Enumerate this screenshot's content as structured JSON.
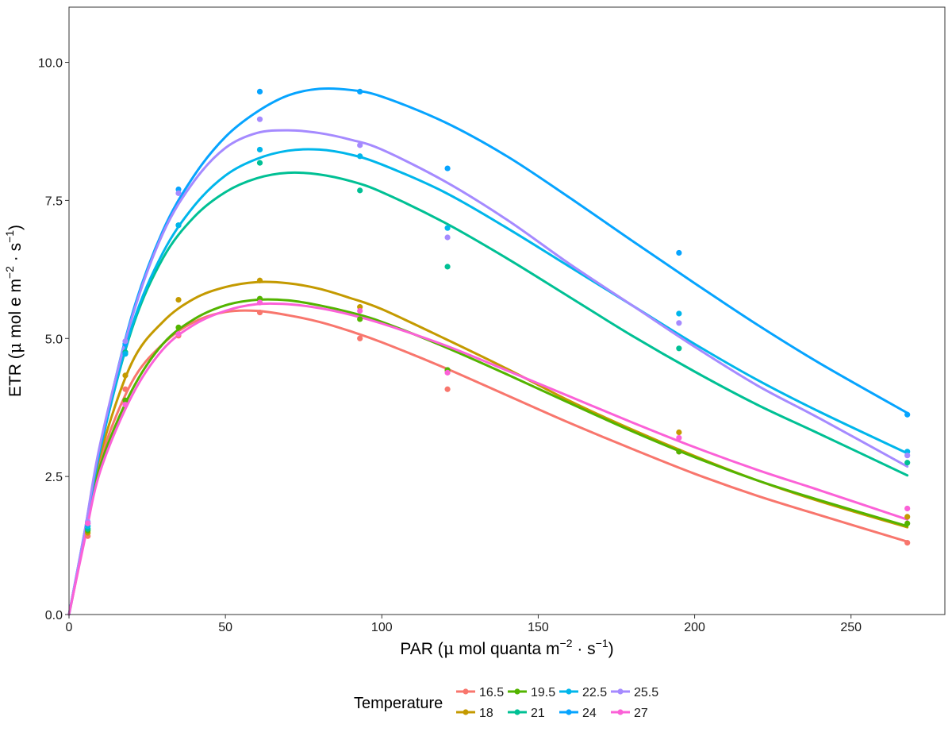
{
  "chart_data": {
    "type": "scatter",
    "title": "",
    "xlabel": "PAR (μ mol quanta m⁻²·s⁻¹)",
    "ylabel": "ETR (μ mol e m⁻²·s⁻¹)",
    "xlabel_parts": {
      "prefix": "PAR (",
      "mu": "μ",
      "mid": " mol quanta m",
      "sup1": "−2",
      "dot": " · s",
      "sup2": "−1",
      "suffix": ")"
    },
    "ylabel_parts": {
      "prefix": "ETR (",
      "mu": "μ",
      "mid": " mol e m",
      "sup1": "−2",
      "dot": " · s",
      "sup2": "−1",
      "suffix": ")"
    },
    "xlim": [
      0,
      280
    ],
    "ylim": [
      0,
      11
    ],
    "xticks": [
      0,
      50,
      100,
      150,
      200,
      250
    ],
    "xtick_labels": [
      "0",
      "50",
      "100",
      "150",
      "200",
      "250"
    ],
    "yticks": [
      0,
      2.5,
      5,
      7.5,
      10
    ],
    "ytick_labels": [
      "0.0",
      "2.5",
      "5.0",
      "7.5",
      "10.0"
    ],
    "grid": false,
    "legend_title": "Temperature",
    "legend_position": "bottom",
    "series": [
      {
        "name": "16.5",
        "color": "#F8766D",
        "points": [
          [
            6,
            1.42
          ],
          [
            18,
            4.08
          ],
          [
            35,
            5.05
          ],
          [
            61,
            5.47
          ],
          [
            93,
            5.0
          ],
          [
            121,
            4.08
          ],
          [
            195,
            2.95
          ],
          [
            268,
            1.3
          ]
        ],
        "curve": [
          [
            0,
            0
          ],
          [
            5,
            1.4
          ],
          [
            10,
            2.8
          ],
          [
            20,
            4.2
          ],
          [
            30,
            4.9
          ],
          [
            40,
            5.3
          ],
          [
            50,
            5.48
          ],
          [
            60,
            5.5
          ],
          [
            70,
            5.42
          ],
          [
            80,
            5.3
          ],
          [
            90,
            5.13
          ],
          [
            100,
            4.93
          ],
          [
            120,
            4.47
          ],
          [
            140,
            3.97
          ],
          [
            160,
            3.47
          ],
          [
            180,
            3.0
          ],
          [
            200,
            2.55
          ],
          [
            220,
            2.15
          ],
          [
            240,
            1.8
          ],
          [
            268,
            1.32
          ]
        ]
      },
      {
        "name": "18",
        "color": "#C49A00",
        "points": [
          [
            6,
            1.48
          ],
          [
            18,
            4.33
          ],
          [
            35,
            5.7
          ],
          [
            61,
            6.05
          ],
          [
            93,
            5.57
          ],
          [
            121,
            4.42
          ],
          [
            195,
            3.3
          ],
          [
            268,
            1.77
          ]
        ],
        "curve": [
          [
            0,
            0
          ],
          [
            5,
            1.45
          ],
          [
            10,
            2.9
          ],
          [
            20,
            4.55
          ],
          [
            30,
            5.3
          ],
          [
            40,
            5.72
          ],
          [
            50,
            5.93
          ],
          [
            60,
            6.02
          ],
          [
            70,
            6.0
          ],
          [
            80,
            5.9
          ],
          [
            90,
            5.73
          ],
          [
            100,
            5.53
          ],
          [
            120,
            5.0
          ],
          [
            140,
            4.45
          ],
          [
            160,
            3.87
          ],
          [
            180,
            3.35
          ],
          [
            200,
            2.87
          ],
          [
            220,
            2.43
          ],
          [
            240,
            2.05
          ],
          [
            268,
            1.58
          ]
        ]
      },
      {
        "name": "19.5",
        "color": "#53B400",
        "points": [
          [
            6,
            1.52
          ],
          [
            18,
            3.88
          ],
          [
            35,
            5.2
          ],
          [
            61,
            5.72
          ],
          [
            93,
            5.35
          ],
          [
            121,
            4.43
          ],
          [
            195,
            2.95
          ],
          [
            268,
            1.65
          ]
        ],
        "curve": [
          [
            0,
            0
          ],
          [
            5,
            1.4
          ],
          [
            10,
            2.7
          ],
          [
            20,
            4.05
          ],
          [
            30,
            4.9
          ],
          [
            40,
            5.35
          ],
          [
            50,
            5.6
          ],
          [
            60,
            5.7
          ],
          [
            70,
            5.69
          ],
          [
            80,
            5.6
          ],
          [
            90,
            5.47
          ],
          [
            100,
            5.3
          ],
          [
            120,
            4.85
          ],
          [
            140,
            4.35
          ],
          [
            160,
            3.83
          ],
          [
            180,
            3.32
          ],
          [
            200,
            2.85
          ],
          [
            220,
            2.43
          ],
          [
            240,
            2.07
          ],
          [
            268,
            1.6
          ]
        ]
      },
      {
        "name": "21",
        "color": "#00C094",
        "points": [
          [
            6,
            1.55
          ],
          [
            18,
            4.75
          ],
          [
            35,
            7.05
          ],
          [
            61,
            8.18
          ],
          [
            93,
            7.68
          ],
          [
            121,
            6.3
          ],
          [
            195,
            4.82
          ],
          [
            268,
            2.75
          ]
        ],
        "curve": [
          [
            0,
            0
          ],
          [
            5,
            1.45
          ],
          [
            10,
            3.0
          ],
          [
            20,
            5.15
          ],
          [
            30,
            6.45
          ],
          [
            40,
            7.2
          ],
          [
            50,
            7.65
          ],
          [
            60,
            7.9
          ],
          [
            70,
            8.0
          ],
          [
            80,
            7.97
          ],
          [
            90,
            7.85
          ],
          [
            100,
            7.65
          ],
          [
            120,
            7.1
          ],
          [
            140,
            6.45
          ],
          [
            160,
            5.75
          ],
          [
            180,
            5.05
          ],
          [
            200,
            4.4
          ],
          [
            220,
            3.8
          ],
          [
            240,
            3.27
          ],
          [
            268,
            2.52
          ]
        ]
      },
      {
        "name": "22.5",
        "color": "#00B6EB",
        "points": [
          [
            6,
            1.6
          ],
          [
            18,
            4.72
          ],
          [
            35,
            7.05
          ],
          [
            61,
            8.42
          ],
          [
            93,
            8.3
          ],
          [
            121,
            7.0
          ],
          [
            195,
            5.45
          ],
          [
            268,
            2.95
          ]
        ],
        "curve": [
          [
            0,
            0
          ],
          [
            5,
            1.45
          ],
          [
            10,
            3.0
          ],
          [
            20,
            5.2
          ],
          [
            30,
            6.55
          ],
          [
            40,
            7.4
          ],
          [
            50,
            7.95
          ],
          [
            60,
            8.25
          ],
          [
            70,
            8.4
          ],
          [
            80,
            8.42
          ],
          [
            90,
            8.33
          ],
          [
            100,
            8.15
          ],
          [
            120,
            7.65
          ],
          [
            140,
            7.0
          ],
          [
            160,
            6.3
          ],
          [
            180,
            5.6
          ],
          [
            200,
            4.9
          ],
          [
            220,
            4.25
          ],
          [
            240,
            3.67
          ],
          [
            268,
            2.92
          ]
        ]
      },
      {
        "name": "24",
        "color": "#06A4FF",
        "points": [
          [
            6,
            1.65
          ],
          [
            18,
            4.9
          ],
          [
            35,
            7.7
          ],
          [
            61,
            9.47
          ],
          [
            93,
            9.47
          ],
          [
            121,
            8.08
          ],
          [
            195,
            6.55
          ],
          [
            268,
            3.62
          ]
        ],
        "curve": [
          [
            0,
            0
          ],
          [
            5,
            1.5
          ],
          [
            10,
            3.05
          ],
          [
            20,
            5.4
          ],
          [
            30,
            6.95
          ],
          [
            40,
            7.95
          ],
          [
            50,
            8.65
          ],
          [
            60,
            9.1
          ],
          [
            70,
            9.4
          ],
          [
            80,
            9.52
          ],
          [
            90,
            9.5
          ],
          [
            100,
            9.38
          ],
          [
            120,
            8.92
          ],
          [
            140,
            8.3
          ],
          [
            160,
            7.55
          ],
          [
            180,
            6.77
          ],
          [
            200,
            6.0
          ],
          [
            220,
            5.25
          ],
          [
            240,
            4.55
          ],
          [
            268,
            3.65
          ]
        ]
      },
      {
        "name": "25.5",
        "color": "#A58AFF",
        "points": [
          [
            6,
            1.68
          ],
          [
            18,
            4.95
          ],
          [
            35,
            7.63
          ],
          [
            61,
            8.97
          ],
          [
            93,
            8.5
          ],
          [
            121,
            6.83
          ],
          [
            195,
            5.28
          ],
          [
            268,
            2.88
          ]
        ],
        "curve": [
          [
            0,
            0
          ],
          [
            5,
            1.5
          ],
          [
            10,
            3.1
          ],
          [
            20,
            5.35
          ],
          [
            30,
            6.9
          ],
          [
            40,
            7.85
          ],
          [
            50,
            8.45
          ],
          [
            60,
            8.72
          ],
          [
            70,
            8.77
          ],
          [
            80,
            8.72
          ],
          [
            90,
            8.6
          ],
          [
            100,
            8.42
          ],
          [
            120,
            7.85
          ],
          [
            140,
            7.15
          ],
          [
            160,
            6.35
          ],
          [
            180,
            5.6
          ],
          [
            200,
            4.85
          ],
          [
            220,
            4.15
          ],
          [
            240,
            3.55
          ],
          [
            268,
            2.68
          ]
        ]
      },
      {
        "name": "27",
        "color": "#FB61D7",
        "points": [
          [
            6,
            1.65
          ],
          [
            18,
            3.8
          ],
          [
            35,
            5.08
          ],
          [
            61,
            5.65
          ],
          [
            93,
            5.5
          ],
          [
            121,
            4.38
          ],
          [
            195,
            3.2
          ],
          [
            268,
            1.92
          ]
        ],
        "curve": [
          [
            0,
            0
          ],
          [
            5,
            1.35
          ],
          [
            10,
            2.6
          ],
          [
            20,
            3.95
          ],
          [
            30,
            4.8
          ],
          [
            40,
            5.25
          ],
          [
            50,
            5.5
          ],
          [
            60,
            5.62
          ],
          [
            70,
            5.62
          ],
          [
            80,
            5.55
          ],
          [
            90,
            5.43
          ],
          [
            100,
            5.27
          ],
          [
            120,
            4.88
          ],
          [
            140,
            4.42
          ],
          [
            160,
            3.95
          ],
          [
            180,
            3.48
          ],
          [
            200,
            3.03
          ],
          [
            220,
            2.62
          ],
          [
            240,
            2.25
          ],
          [
            268,
            1.72
          ]
        ]
      }
    ]
  }
}
